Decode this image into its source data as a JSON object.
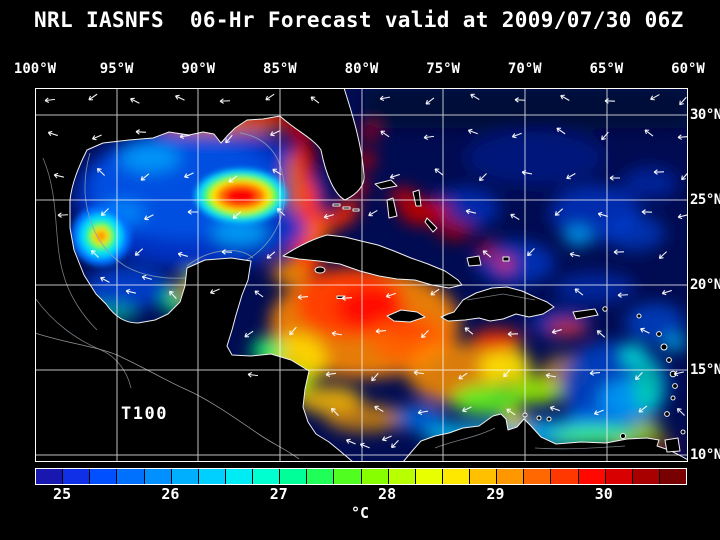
{
  "title": "NRL IASNFS  06-Hr Forecast valid at 2009/07/30 06Z",
  "map": {
    "lon_labels": [
      "100°W",
      "95°W",
      "90°W",
      "85°W",
      "80°W",
      "75°W",
      "70°W",
      "65°W",
      "60°W"
    ],
    "lat_labels": [
      "30°N",
      "25°N",
      "20°N",
      "15°N",
      "10°N"
    ],
    "annotation": "T100"
  },
  "colorbar": {
    "unit": "°C",
    "tick_labels": [
      "25",
      "26",
      "27",
      "28",
      "29",
      "30"
    ],
    "segment_colors": [
      "#1818b0",
      "#1030e8",
      "#0050ff",
      "#0070ff",
      "#0090ff",
      "#00b0ff",
      "#00d0ff",
      "#00ecf4",
      "#00ffd0",
      "#00ff98",
      "#20ff58",
      "#50ff20",
      "#88ff00",
      "#b8ff00",
      "#e8ff00",
      "#ffe800",
      "#ffc000",
      "#ff9800",
      "#ff6800",
      "#ff3800",
      "#ff0800",
      "#d80000",
      "#a80000",
      "#780000"
    ]
  }
}
